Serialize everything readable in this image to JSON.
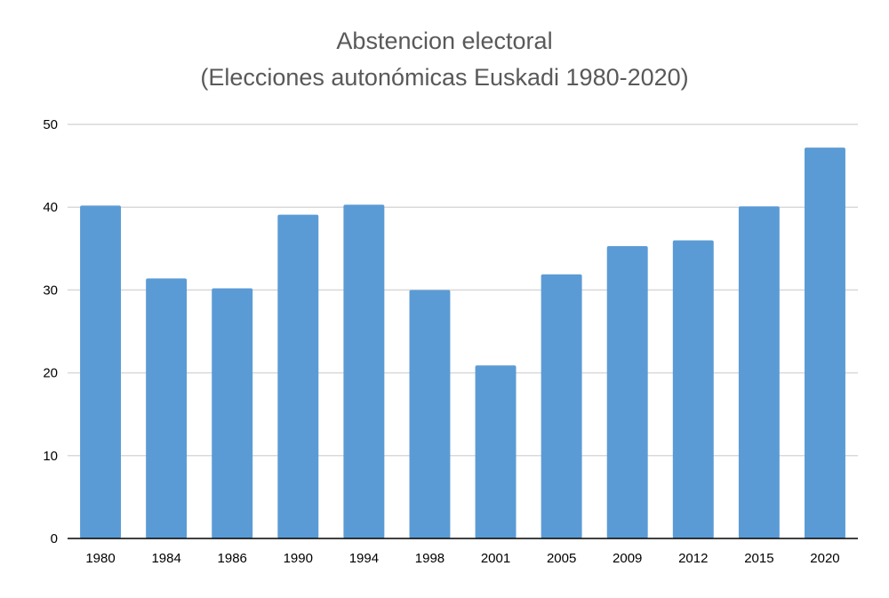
{
  "chart_data": {
    "type": "bar",
    "title": "Abstencion electoral",
    "subtitle": "(Elecciones autonómicas Euskadi 1980-2020)",
    "xlabel": "",
    "ylabel": "",
    "categories": [
      "1980",
      "1984",
      "1986",
      "1990",
      "1994",
      "1998",
      "2001",
      "2005",
      "2009",
      "2012",
      "2015",
      "2020"
    ],
    "values": [
      40.2,
      31.4,
      30.2,
      39.1,
      40.3,
      30.0,
      20.9,
      31.9,
      35.3,
      36.0,
      40.1,
      47.2
    ],
    "ylim": [
      0,
      50
    ],
    "yticks": [
      0,
      10,
      20,
      30,
      40,
      50
    ],
    "grid": true,
    "legend": "none",
    "bar_color": "#5b9bd5"
  }
}
